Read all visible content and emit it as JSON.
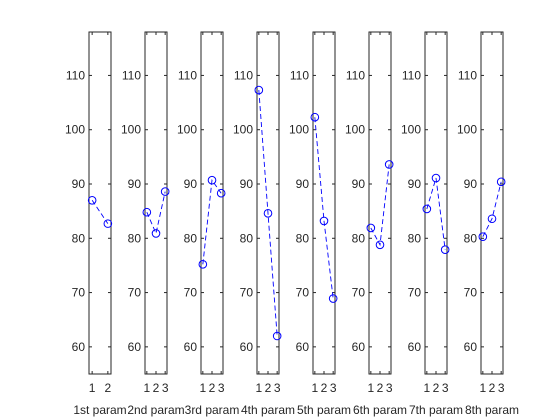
{
  "chart_data": {
    "type": "line",
    "ylim": [
      55,
      118
    ],
    "yticks": [
      60,
      70,
      80,
      90,
      100,
      110
    ],
    "series_color": "#0000FF",
    "line_style": "dashed",
    "marker": "circle",
    "grid": false,
    "panels": [
      {
        "xlabel": "1st param",
        "x": [
          1,
          2
        ],
        "xlim": [
          0.8,
          2.2
        ],
        "values": [
          87.0,
          82.7
        ]
      },
      {
        "xlabel": "2nd param",
        "x": [
          1,
          2,
          3
        ],
        "xlim": [
          0.8,
          3.2
        ],
        "values": [
          84.8,
          80.9,
          88.6
        ]
      },
      {
        "xlabel": "3rd param",
        "x": [
          1,
          2,
          3
        ],
        "xlim": [
          0.8,
          3.2
        ],
        "values": [
          75.2,
          90.7,
          88.3
        ]
      },
      {
        "xlabel": "4th param",
        "x": [
          1,
          2,
          3
        ],
        "xlim": [
          0.8,
          3.2
        ],
        "values": [
          107.3,
          84.6,
          62.0
        ]
      },
      {
        "xlabel": "5th param",
        "x": [
          1,
          2,
          3
        ],
        "xlim": [
          0.8,
          3.2
        ],
        "values": [
          102.3,
          83.2,
          68.9
        ]
      },
      {
        "xlabel": "6th param",
        "x": [
          1,
          2,
          3
        ],
        "xlim": [
          0.8,
          3.2
        ],
        "values": [
          81.9,
          78.8,
          93.6
        ]
      },
      {
        "xlabel": "7th param",
        "x": [
          1,
          2,
          3
        ],
        "xlim": [
          0.8,
          3.2
        ],
        "values": [
          85.4,
          91.1,
          77.9
        ]
      },
      {
        "xlabel": "8th param",
        "x": [
          1,
          2,
          3
        ],
        "xlim": [
          0.8,
          3.2
        ],
        "values": [
          80.3,
          83.6,
          90.4
        ]
      }
    ]
  }
}
